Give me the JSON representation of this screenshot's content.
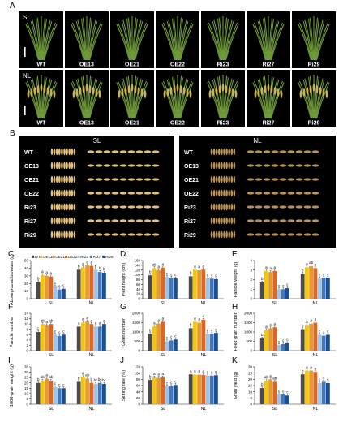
{
  "panel_letters": [
    "A",
    "B",
    "C",
    "D",
    "E",
    "F",
    "G",
    "H",
    "I",
    "J",
    "K"
  ],
  "genotypes": [
    "WT",
    "OE13",
    "OE21",
    "OE22",
    "Ri23",
    "Ri27",
    "Ri29"
  ],
  "panelA": {
    "row_labels": [
      "SL",
      "NL"
    ],
    "plant_labels": [
      "WT",
      "OE13",
      "OE21",
      "OE22",
      "Ri23",
      "Ri27",
      "Ri29"
    ]
  },
  "panelB": {
    "sections": [
      "SL",
      "NL"
    ],
    "row_labels": [
      "WT",
      "OE13",
      "OE21",
      "OE22",
      "Ri23",
      "Ri27",
      "Ri29"
    ]
  },
  "legend": [
    "WT",
    "OE13",
    "OE21",
    "OE22",
    "RI23",
    "RI27",
    "RI29"
  ],
  "colors": {
    "series": [
      "#4a4a4a",
      "#f0c419",
      "#e89a2a",
      "#e0651e",
      "#9fc3e6",
      "#3f78c0",
      "#1e4e8c"
    ],
    "photo_bg": "#000000",
    "leaf": "#6f9a3a",
    "panicle": "#c9b45a",
    "grain_light": "#e0c07a",
    "grain_dark": "#b8935a"
  },
  "chart_data": [
    {
      "panel": "C",
      "type": "bar",
      "ylabel": "Aboveground biomass (g)",
      "categories": [
        "SL",
        "NL"
      ],
      "yticks": [
        0,
        10,
        20,
        30,
        40,
        50
      ],
      "ylim": [
        0,
        50
      ],
      "series_values": [
        [
          22,
          38
        ],
        [
          31,
          41
        ],
        [
          30,
          44
        ],
        [
          29,
          43
        ],
        [
          16,
          38
        ],
        [
          12,
          35
        ],
        [
          13,
          34
        ]
      ],
      "sig": [
        [
          "b",
          "b"
        ],
        [
          "a",
          "a"
        ],
        [
          "a",
          "a"
        ],
        [
          "a",
          "a"
        ],
        [
          "c",
          "b"
        ],
        [
          "c",
          "b"
        ],
        [
          "c",
          "b"
        ]
      ]
    },
    {
      "panel": "D",
      "type": "bar",
      "ylabel": "Plant height (cm)",
      "categories": [
        "SL",
        "NL"
      ],
      "yticks": [
        0,
        20,
        40,
        60,
        80,
        100,
        120,
        140,
        160
      ],
      "ylim": [
        0,
        160
      ],
      "series_values": [
        [
          98,
          94
        ],
        [
          128,
          122
        ],
        [
          120,
          119
        ],
        [
          130,
          122
        ],
        [
          91,
          86
        ],
        [
          88,
          84
        ],
        [
          85,
          82
        ]
      ],
      "sig": [
        [
          "b",
          "b"
        ],
        [
          "ab",
          "a"
        ],
        [
          "a",
          "a"
        ],
        [
          "a",
          "a"
        ],
        [
          "c",
          "c"
        ],
        [
          "c",
          "c"
        ],
        [
          "c",
          "c"
        ]
      ]
    },
    {
      "panel": "E",
      "type": "bar",
      "ylabel": "Panicle weight (g)",
      "categories": [
        "SL",
        "NL"
      ],
      "yticks": [
        0,
        1,
        2,
        3,
        4
      ],
      "ylim": [
        0,
        4
      ],
      "series_values": [
        [
          1.7,
          2.6
        ],
        [
          2.9,
          3.3
        ],
        [
          2.8,
          3.4
        ],
        [
          2.9,
          3.2
        ],
        [
          1.0,
          2.1
        ],
        [
          1.0,
          2.2
        ],
        [
          1.1,
          2.2
        ]
      ],
      "sig": [
        [
          "b",
          "b"
        ],
        [
          "a",
          "a"
        ],
        [
          "a",
          "ab"
        ],
        [
          "a",
          "a"
        ],
        [
          "c",
          "c"
        ],
        [
          "c",
          "c"
        ],
        [
          "c",
          "c"
        ]
      ]
    },
    {
      "panel": "F",
      "type": "bar",
      "ylabel": "Panicle number",
      "categories": [
        "SL",
        "NL"
      ],
      "yticks": [
        0,
        2,
        4,
        6,
        8,
        10,
        12,
        14
      ],
      "ylim": [
        0,
        14
      ],
      "series_values": [
        [
          7,
          9
        ],
        [
          10,
          10.5
        ],
        [
          9.5,
          11
        ],
        [
          10,
          10
        ],
        [
          6,
          9
        ],
        [
          5.5,
          9
        ],
        [
          6,
          10
        ]
      ],
      "sig": [
        [
          "c",
          "a"
        ],
        [
          "ab",
          "a"
        ],
        [
          "a",
          "a"
        ],
        [
          "ab",
          "a"
        ],
        [
          "c",
          "a"
        ],
        [
          "c",
          "a"
        ],
        [
          "c",
          "a"
        ]
      ]
    },
    {
      "panel": "G",
      "type": "bar",
      "ylabel": "Grain number",
      "categories": [
        "SL",
        "NL"
      ],
      "yticks": [
        0,
        500,
        1000,
        1500,
        2000
      ],
      "ylim": [
        0,
        2000
      ],
      "series_values": [
        [
          900,
          1200
        ],
        [
          1300,
          1550
        ],
        [
          1450,
          1500
        ],
        [
          1550,
          1650
        ],
        [
          500,
          900
        ],
        [
          550,
          900
        ],
        [
          600,
          950
        ]
      ],
      "sig": [
        [
          "b",
          "b"
        ],
        [
          "a",
          "a"
        ],
        [
          "a",
          "a"
        ],
        [
          "a",
          "a"
        ],
        [
          "c",
          "c"
        ],
        [
          "c",
          "c"
        ],
        [
          "c",
          "c"
        ]
      ]
    },
    {
      "panel": "H",
      "type": "bar",
      "ylabel": "Filled grain number",
      "categories": [
        "SL",
        "NL"
      ],
      "yticks": [
        0,
        500,
        1000,
        1500,
        2000
      ],
      "ylim": [
        0,
        2000
      ],
      "series_values": [
        [
          650,
          1150
        ],
        [
          1100,
          1350
        ],
        [
          1200,
          1450
        ],
        [
          1250,
          1500
        ],
        [
          300,
          850
        ],
        [
          350,
          800
        ],
        [
          400,
          850
        ]
      ],
      "sig": [
        [
          "b",
          "b"
        ],
        [
          "a",
          "a"
        ],
        [
          "a",
          "a"
        ],
        [
          "a",
          "a"
        ],
        [
          "c",
          "c"
        ],
        [
          "c",
          "c"
        ],
        [
          "c",
          "c"
        ]
      ]
    },
    {
      "panel": "I",
      "type": "bar",
      "ylabel": "1000-grain weight (g)",
      "categories": [
        "SL",
        "NL"
      ],
      "yticks": [
        0,
        5,
        10,
        15,
        20,
        25,
        30,
        35
      ],
      "ylim": [
        0,
        35
      ],
      "series_values": [
        [
          20,
          21
        ],
        [
          22,
          26
        ],
        [
          24,
          24
        ],
        [
          22,
          20
        ],
        [
          16,
          19
        ],
        [
          15,
          20
        ],
        [
          15,
          19
        ]
      ],
      "sig": [
        [
          "b",
          "b"
        ],
        [
          "ab",
          "a"
        ],
        [
          "a",
          "ab"
        ],
        [
          "ab",
          "b"
        ],
        [
          "c",
          "bc"
        ],
        [
          "c",
          "bc"
        ],
        [
          "c",
          "bc"
        ]
      ]
    },
    {
      "panel": "J",
      "type": "bar",
      "ylabel": "Setting rate (%)",
      "categories": [
        "SL",
        "NL"
      ],
      "yticks": [
        0,
        20,
        40,
        60,
        80,
        100,
        120
      ],
      "ylim": [
        0,
        120
      ],
      "series_values": [
        [
          78,
          96
        ],
        [
          86,
          95
        ],
        [
          85,
          95
        ],
        [
          86,
          94
        ],
        [
          57,
          92
        ],
        [
          58,
          92
        ],
        [
          62,
          93
        ]
      ],
      "sig": [
        [
          "b",
          "a"
        ],
        [
          "a",
          "a"
        ],
        [
          "a",
          "a"
        ],
        [
          "a",
          "a"
        ],
        [
          "c",
          "a"
        ],
        [
          "c",
          "a"
        ],
        [
          "c",
          "a"
        ]
      ]
    },
    {
      "panel": "K",
      "type": "bar",
      "ylabel": "Grain yield (g)",
      "categories": [
        "SL",
        "NL"
      ],
      "yticks": [
        0,
        5,
        10,
        15,
        20,
        25,
        30
      ],
      "ylim": [
        0,
        30
      ],
      "series_values": [
        [
          13,
          24
        ],
        [
          19,
          27
        ],
        [
          20,
          27
        ],
        [
          18,
          26
        ],
        [
          8,
          17
        ],
        [
          8,
          18
        ],
        [
          7,
          17
        ]
      ],
      "sig": [
        [
          "b",
          "b"
        ],
        [
          "ab",
          "a"
        ],
        [
          "a",
          "a"
        ],
        [
          "ab",
          "a"
        ],
        [
          "c",
          "c"
        ],
        [
          "c",
          "c"
        ],
        [
          "c",
          "c"
        ]
      ]
    }
  ]
}
